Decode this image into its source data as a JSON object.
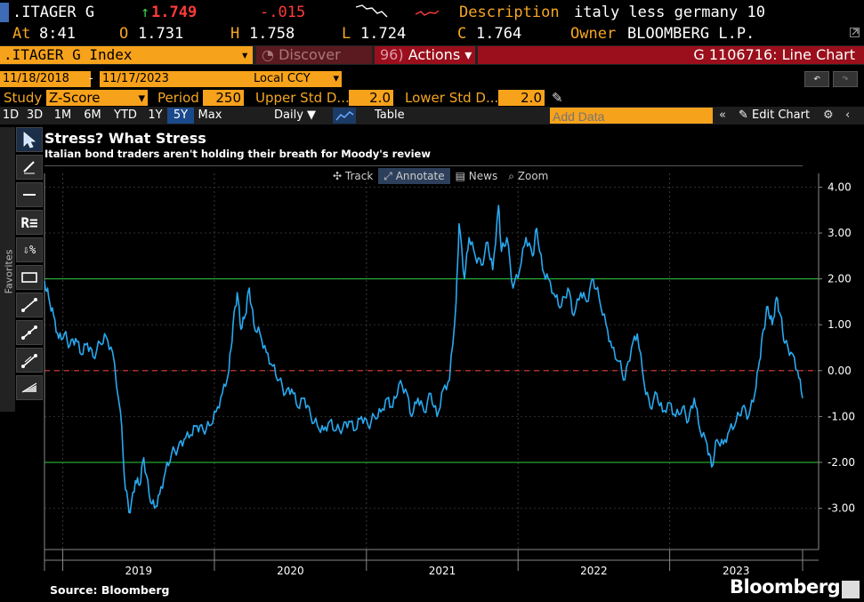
{
  "header": {
    "ticker": ".ITAGER G",
    "last_arrow": "↑",
    "last": "1.749",
    "change": "-.015",
    "desc_label": "Description",
    "desc_value": "italy less germany 10",
    "at_label": "At",
    "at_value": "8:41",
    "o_label": "O",
    "o_value": "1.731",
    "h_label": "H",
    "h_value": "1.758",
    "l_label": "L",
    "l_value": "1.724",
    "c_label": "C",
    "c_value": "1.764",
    "owner_label": "Owner",
    "owner_value": "BLOOMBERG L.P."
  },
  "toolbar1": {
    "index": ".ITAGER G Index",
    "discover": "Discover",
    "actions_num": "96)",
    "actions": "Actions",
    "chart_id": "G 1106716: Line Chart"
  },
  "toolbar2": {
    "start_date": "11/18/2018",
    "dash": "-",
    "end_date": "11/17/2023",
    "currency": "Local CCY"
  },
  "study": {
    "label": "Study",
    "value": "Z-Score",
    "period_label": "Period",
    "period_value": "250",
    "upper_label": "Upper Std D...",
    "upper_value": "2.0",
    "lower_label": "Lower Std D...",
    "lower_value": "2.0"
  },
  "ranges": [
    "1D",
    "3D",
    "1M",
    "6M",
    "YTD",
    "1Y",
    "5Y",
    "Max"
  ],
  "selected_range": "5Y",
  "frequency": "Daily",
  "table_label": "Table",
  "add_data_placeholder": "Add Data",
  "edit_chart": "Edit Chart",
  "favorites": "Favorites",
  "chart_title": "Stress? What Stress",
  "chart_subtitle": "Italian bond traders aren't holding their breath for Moody's review",
  "chart_tools": [
    "Track",
    "Annotate",
    "News",
    "Zoom"
  ],
  "source": "Source: Bloomberg",
  "brand": "Bloomberg",
  "colors": {
    "line": "#29a9f0",
    "band": "#2ecc40",
    "zero": "#e03c3c",
    "orange": "#f7a21b",
    "red_bar": "#9a0f1b"
  },
  "chart_data": {
    "type": "line",
    "title": "Stress? What Stress",
    "subtitle": "Italian bond traders aren't holding their breath for Moody's review",
    "xlabels": [
      "2019",
      "2020",
      "2021",
      "2022",
      "2023"
    ],
    "ylim": [
      -3.9,
      4.3
    ],
    "yticks": [
      4,
      3,
      2,
      1,
      0,
      -1,
      -2,
      -3
    ],
    "ytick_labels": [
      "4.00",
      "3.00",
      "2.00",
      "1.00",
      "0.00",
      "-1.00",
      "-2.00",
      "-3.00"
    ],
    "upper_band": 2.0,
    "lower_band": -2.0,
    "zero_line": 0.0,
    "grid": true,
    "series": [
      {
        "values": [
          {
            "x": "2018-11-18",
            "y": 1.95
          },
          {
            "x": "2018-11-28",
            "y": 1.6
          },
          {
            "x": "2018-12-10",
            "y": 1.2
          },
          {
            "x": "2018-12-22",
            "y": 0.7
          },
          {
            "x": "2019-01-05",
            "y": 0.8
          },
          {
            "x": "2019-01-18",
            "y": 0.55
          },
          {
            "x": "2019-02-01",
            "y": 0.7
          },
          {
            "x": "2019-02-15",
            "y": 0.35
          },
          {
            "x": "2019-03-01",
            "y": 0.6
          },
          {
            "x": "2019-03-15",
            "y": 0.3
          },
          {
            "x": "2019-04-01",
            "y": 0.6
          },
          {
            "x": "2019-04-15",
            "y": 0.75
          },
          {
            "x": "2019-05-01",
            "y": 0.4
          },
          {
            "x": "2019-05-20",
            "y": -0.9
          },
          {
            "x": "2019-06-01",
            "y": -2.6
          },
          {
            "x": "2019-06-12",
            "y": -3.1
          },
          {
            "x": "2019-06-25",
            "y": -2.4
          },
          {
            "x": "2019-07-05",
            "y": -2.5
          },
          {
            "x": "2019-07-15",
            "y": -1.9
          },
          {
            "x": "2019-07-28",
            "y": -2.7
          },
          {
            "x": "2019-08-10",
            "y": -3.0
          },
          {
            "x": "2019-08-22",
            "y": -2.7
          },
          {
            "x": "2019-09-05",
            "y": -2.2
          },
          {
            "x": "2019-09-20",
            "y": -1.8
          },
          {
            "x": "2019-10-05",
            "y": -1.7
          },
          {
            "x": "2019-10-20",
            "y": -1.5
          },
          {
            "x": "2019-11-05",
            "y": -1.4
          },
          {
            "x": "2019-11-20",
            "y": -1.2
          },
          {
            "x": "2019-12-05",
            "y": -1.3
          },
          {
            "x": "2019-12-20",
            "y": -1.2
          },
          {
            "x": "2020-01-05",
            "y": -0.9
          },
          {
            "x": "2020-01-20",
            "y": -0.5
          },
          {
            "x": "2020-02-05",
            "y": 0.0
          },
          {
            "x": "2020-02-15",
            "y": 1.0
          },
          {
            "x": "2020-02-25",
            "y": 1.7
          },
          {
            "x": "2020-03-05",
            "y": 0.9
          },
          {
            "x": "2020-03-15",
            "y": 1.2
          },
          {
            "x": "2020-03-25",
            "y": 1.8
          },
          {
            "x": "2020-04-05",
            "y": 1.0
          },
          {
            "x": "2020-04-20",
            "y": 0.8
          },
          {
            "x": "2020-05-05",
            "y": 0.4
          },
          {
            "x": "2020-05-20",
            "y": 0.1
          },
          {
            "x": "2020-06-05",
            "y": -0.2
          },
          {
            "x": "2020-06-20",
            "y": -0.5
          },
          {
            "x": "2020-07-05",
            "y": -0.4
          },
          {
            "x": "2020-07-20",
            "y": -0.8
          },
          {
            "x": "2020-08-05",
            "y": -0.6
          },
          {
            "x": "2020-08-20",
            "y": -1.0
          },
          {
            "x": "2020-09-05",
            "y": -1.2
          },
          {
            "x": "2020-09-20",
            "y": -1.3
          },
          {
            "x": "2020-10-05",
            "y": -1.1
          },
          {
            "x": "2020-10-20",
            "y": -1.3
          },
          {
            "x": "2020-11-05",
            "y": -1.25
          },
          {
            "x": "2020-11-20",
            "y": -1.1
          },
          {
            "x": "2020-12-05",
            "y": -1.3
          },
          {
            "x": "2020-12-20",
            "y": -1.0
          },
          {
            "x": "2021-01-05",
            "y": -1.2
          },
          {
            "x": "2021-01-20",
            "y": -1.0
          },
          {
            "x": "2021-02-05",
            "y": -0.9
          },
          {
            "x": "2021-02-20",
            "y": -0.6
          },
          {
            "x": "2021-03-05",
            "y": -0.8
          },
          {
            "x": "2021-03-20",
            "y": -0.3
          },
          {
            "x": "2021-04-05",
            "y": -0.4
          },
          {
            "x": "2021-04-20",
            "y": -1.0
          },
          {
            "x": "2021-05-05",
            "y": -0.6
          },
          {
            "x": "2021-05-20",
            "y": -0.9
          },
          {
            "x": "2021-06-05",
            "y": -0.5
          },
          {
            "x": "2021-06-20",
            "y": -1.0
          },
          {
            "x": "2021-07-05",
            "y": -0.4
          },
          {
            "x": "2021-07-20",
            "y": -0.2
          },
          {
            "x": "2021-08-05",
            "y": 1.5
          },
          {
            "x": "2021-08-12",
            "y": 3.2
          },
          {
            "x": "2021-08-25",
            "y": 2.0
          },
          {
            "x": "2021-09-05",
            "y": 2.9
          },
          {
            "x": "2021-09-20",
            "y": 2.5
          },
          {
            "x": "2021-10-05",
            "y": 2.3
          },
          {
            "x": "2021-10-20",
            "y": 2.8
          },
          {
            "x": "2021-11-01",
            "y": 2.2
          },
          {
            "x": "2021-11-15",
            "y": 3.6
          },
          {
            "x": "2021-11-22",
            "y": 2.6
          },
          {
            "x": "2021-12-05",
            "y": 2.9
          },
          {
            "x": "2021-12-20",
            "y": 1.8
          },
          {
            "x": "2022-01-05",
            "y": 2.2
          },
          {
            "x": "2022-01-20",
            "y": 2.9
          },
          {
            "x": "2022-02-05",
            "y": 2.5
          },
          {
            "x": "2022-02-15",
            "y": 3.1
          },
          {
            "x": "2022-03-01",
            "y": 2.2
          },
          {
            "x": "2022-03-15",
            "y": 2.0
          },
          {
            "x": "2022-04-01",
            "y": 1.6
          },
          {
            "x": "2022-04-15",
            "y": 1.4
          },
          {
            "x": "2022-05-01",
            "y": 1.8
          },
          {
            "x": "2022-05-15",
            "y": 1.2
          },
          {
            "x": "2022-06-01",
            "y": 1.7
          },
          {
            "x": "2022-06-15",
            "y": 1.5
          },
          {
            "x": "2022-07-01",
            "y": 2.0
          },
          {
            "x": "2022-07-15",
            "y": 1.6
          },
          {
            "x": "2022-08-01",
            "y": 1.0
          },
          {
            "x": "2022-08-15",
            "y": 0.5
          },
          {
            "x": "2022-09-01",
            "y": 0.2
          },
          {
            "x": "2022-09-15",
            "y": -0.2
          },
          {
            "x": "2022-10-01",
            "y": 0.5
          },
          {
            "x": "2022-10-15",
            "y": 0.8
          },
          {
            "x": "2022-11-01",
            "y": -0.3
          },
          {
            "x": "2022-11-15",
            "y": -0.8
          },
          {
            "x": "2022-12-01",
            "y": -0.5
          },
          {
            "x": "2022-12-15",
            "y": -0.9
          },
          {
            "x": "2023-01-01",
            "y": -0.7
          },
          {
            "x": "2023-01-15",
            "y": -1.0
          },
          {
            "x": "2023-02-01",
            "y": -0.8
          },
          {
            "x": "2023-02-15",
            "y": -1.1
          },
          {
            "x": "2023-03-01",
            "y": -0.6
          },
          {
            "x": "2023-03-15",
            "y": -1.3
          },
          {
            "x": "2023-04-01",
            "y": -1.6
          },
          {
            "x": "2023-04-12",
            "y": -2.1
          },
          {
            "x": "2023-04-25",
            "y": -1.5
          },
          {
            "x": "2023-05-10",
            "y": -1.6
          },
          {
            "x": "2023-05-25",
            "y": -1.3
          },
          {
            "x": "2023-06-10",
            "y": -1.1
          },
          {
            "x": "2023-06-25",
            "y": -0.8
          },
          {
            "x": "2023-07-10",
            "y": -1.0
          },
          {
            "x": "2023-07-25",
            "y": -0.5
          },
          {
            "x": "2023-08-05",
            "y": 0.2
          },
          {
            "x": "2023-08-15",
            "y": 0.9
          },
          {
            "x": "2023-08-25",
            "y": 1.4
          },
          {
            "x": "2023-09-05",
            "y": 1.0
          },
          {
            "x": "2023-09-15",
            "y": 1.6
          },
          {
            "x": "2023-09-25",
            "y": 1.2
          },
          {
            "x": "2023-10-05",
            "y": 0.6
          },
          {
            "x": "2023-10-20",
            "y": 0.4
          },
          {
            "x": "2023-11-05",
            "y": 0.0
          },
          {
            "x": "2023-11-17",
            "y": -0.6
          }
        ]
      }
    ]
  }
}
